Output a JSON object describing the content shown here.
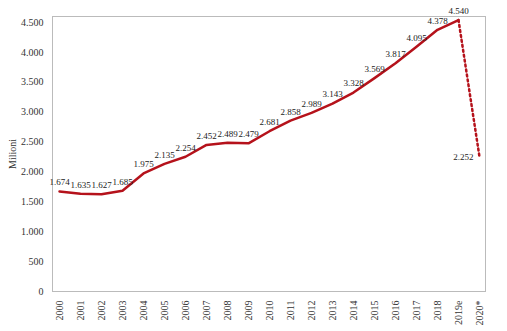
{
  "chart_data": {
    "type": "line",
    "categories": [
      "2000",
      "2001",
      "2002",
      "2003",
      "2004",
      "2005",
      "2006",
      "2007",
      "2008",
      "2009",
      "2010",
      "2011",
      "2012",
      "2013",
      "2014",
      "2015",
      "2016",
      "2017",
      "2018",
      "2019e",
      "2020*"
    ],
    "ylabel": "Milioni",
    "ylim": [
      0,
      4600
    ],
    "yticks": [
      0,
      500,
      {
        "value": 1000,
        "label": "1.000"
      },
      {
        "value": 1500,
        "label": "1.500"
      },
      {
        "value": 2000,
        "label": "2.000"
      },
      {
        "value": 2500,
        "label": "2.500"
      },
      {
        "value": 3000,
        "label": "3.000"
      },
      {
        "value": 3500,
        "label": "3.500"
      },
      {
        "value": 4000,
        "label": "4.000"
      },
      {
        "value": 4500,
        "label": "4.500"
      }
    ],
    "grid": false,
    "data_labels": true,
    "series": [
      {
        "color": "#b5121b",
        "line_style": "solid",
        "values": [
          1674,
          1635,
          1627,
          1685,
          1975,
          2135,
          2254,
          2452,
          2489,
          2479,
          2681,
          2858,
          2989,
          3143,
          3328,
          3569,
          3817,
          4095,
          4378,
          4540,
          null
        ],
        "value_labels": [
          "1.674",
          "1.635",
          "1.627",
          "1.685",
          "1.975",
          "2.135",
          "2.254",
          "2.452",
          "2.489",
          "2.479",
          "2.681",
          "2.858",
          "2.989",
          "3.143",
          "3.328",
          "3.569",
          "3.817",
          "4.095",
          "4.378",
          "4.540",
          null
        ]
      },
      {
        "color": "#b5121b",
        "line_style": "dotted",
        "values": [
          null,
          null,
          null,
          null,
          null,
          null,
          null,
          null,
          null,
          null,
          null,
          null,
          null,
          null,
          null,
          null,
          null,
          null,
          null,
          4540,
          2252
        ],
        "value_labels": [
          null,
          null,
          null,
          null,
          null,
          null,
          null,
          null,
          null,
          null,
          null,
          null,
          null,
          null,
          null,
          null,
          null,
          null,
          null,
          null,
          "2.252"
        ]
      }
    ]
  }
}
